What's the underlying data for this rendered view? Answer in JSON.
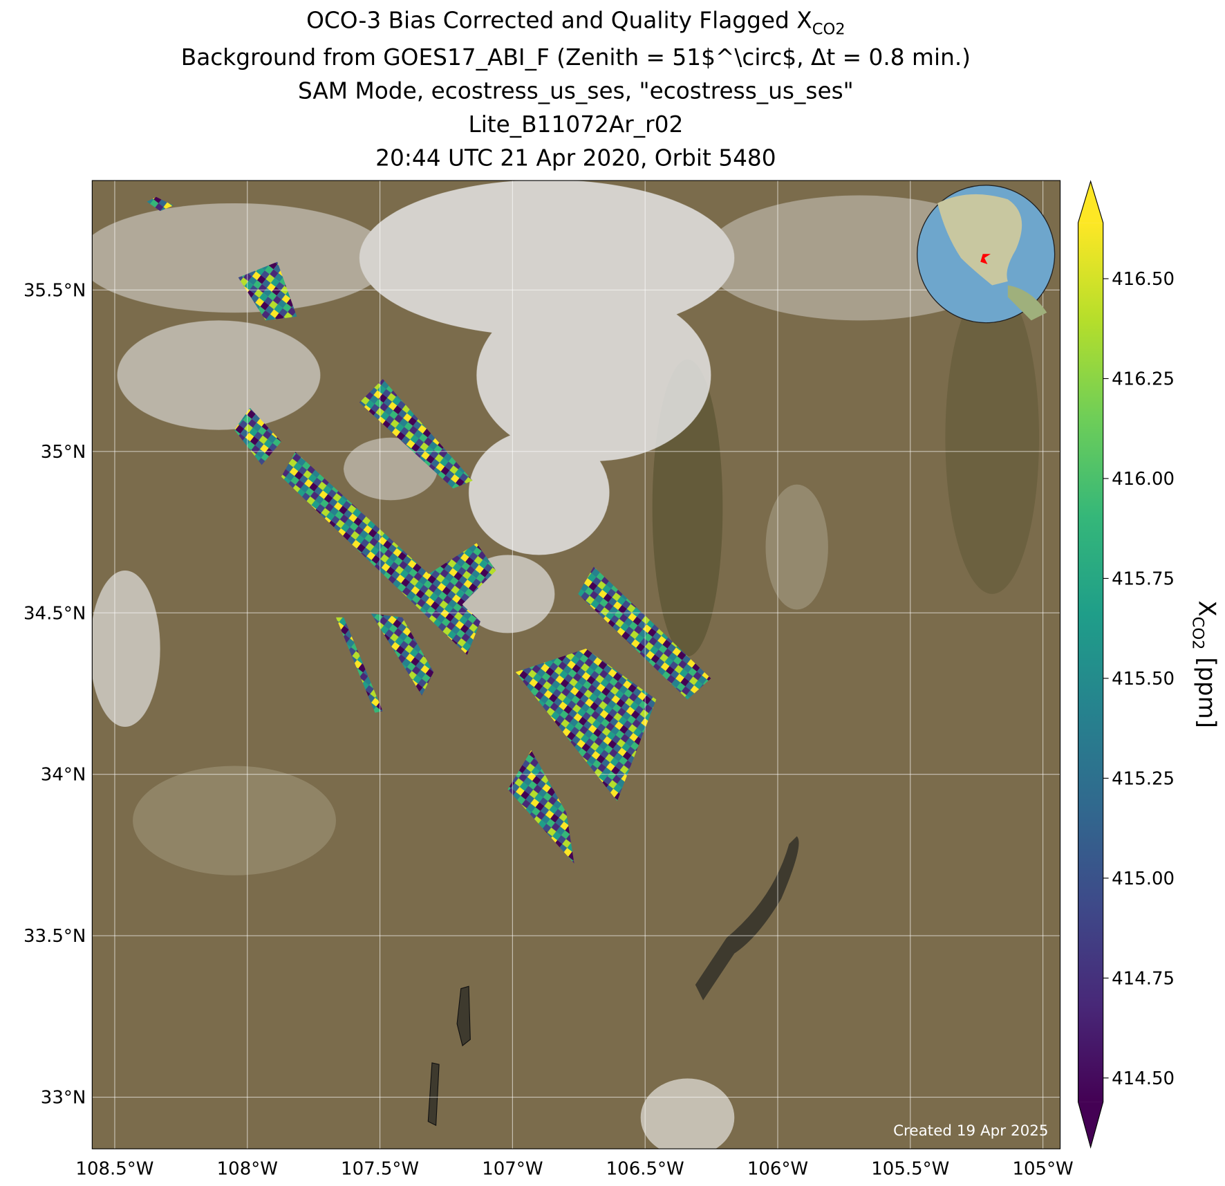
{
  "map": {
    "title_lines": [
      "Background from GOES17_ABI_F (Zenith = 51$^\\circ$, Δt =  0.8 min.)",
      "SAM Mode, ecostress_us_ses, \"ecostress_us_ses\"",
      "Lite_B11072Ar_r02",
      "20:44 UTC 21 Apr 2020, Orbit 5480"
    ],
    "title_first": "OCO-3 Bias Corrected and Quality Flagged X",
    "title_subscript": "CO2",
    "xlim": [
      -108.585,
      -104.935
    ],
    "ylim": [
      32.84,
      35.839
    ],
    "xticks": [
      {
        "value": -108.5,
        "label": "108.5°W"
      },
      {
        "value": -108,
        "label": "108°W"
      },
      {
        "value": -107.5,
        "label": "107.5°W"
      },
      {
        "value": -107,
        "label": "107°W"
      },
      {
        "value": -106.5,
        "label": "106.5°W"
      },
      {
        "value": -106,
        "label": "106°W"
      },
      {
        "value": -105.5,
        "label": "105.5°W"
      },
      {
        "value": -105,
        "label": "105°W"
      }
    ],
    "yticks": [
      {
        "value": 33,
        "label": "33°N"
      },
      {
        "value": 33.5,
        "label": "33.5°N"
      },
      {
        "value": 34,
        "label": "34°N"
      },
      {
        "value": 34.5,
        "label": "34.5°N"
      },
      {
        "value": 35,
        "label": "35°N"
      },
      {
        "value": 35.5,
        "label": "35.5°N"
      }
    ],
    "grid": true,
    "colorbar": {
      "label": "X",
      "label_subscript": "CO2",
      "label_unit": " [ppm]",
      "clim": [
        414.44,
        416.64
      ],
      "ticks": [
        {
          "value": 414.5,
          "label": "414.50"
        },
        {
          "value": 414.75,
          "label": "414.75"
        },
        {
          "value": 415,
          "label": "415.00"
        },
        {
          "value": 415.25,
          "label": "415.25"
        },
        {
          "value": 415.5,
          "label": "415.50"
        },
        {
          "value": 415.75,
          "label": "415.75"
        },
        {
          "value": 416,
          "label": "416.00"
        },
        {
          "value": 416.25,
          "label": "416.25"
        },
        {
          "value": 416.5,
          "label": "416.50"
        }
      ],
      "colormap": [
        "#440154",
        "#482878",
        "#3e4989",
        "#31688e",
        "#26828e",
        "#1f9e89",
        "#35b779",
        "#6ece58",
        "#b5de2b",
        "#fde725"
      ]
    },
    "credit": "Created 19 Apr 2025"
  }
}
